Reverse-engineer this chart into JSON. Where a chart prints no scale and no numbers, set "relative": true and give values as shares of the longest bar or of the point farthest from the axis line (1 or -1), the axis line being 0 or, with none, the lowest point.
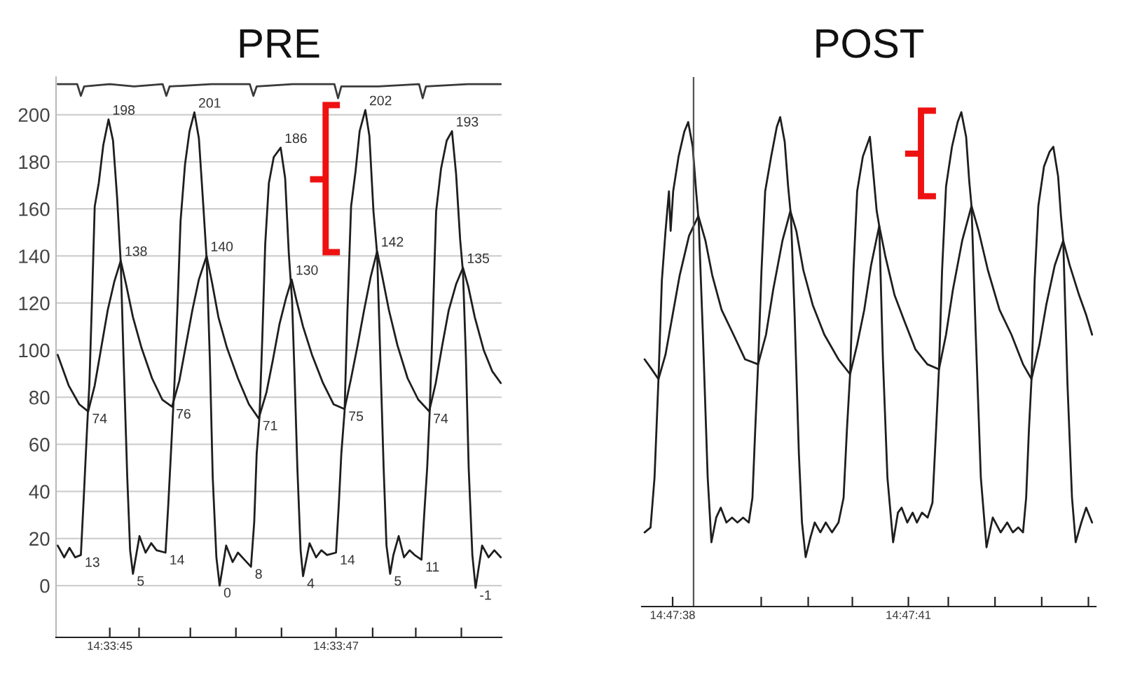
{
  "chart_data": [
    {
      "type": "line",
      "title": "PRE",
      "series": [
        {
          "color": "#1e1e1e",
          "x": [
            14.562372,
            14.562388,
            14.562401,
            14.562415,
            14.562429,
            14.562436,
            14.562444,
            14.56245,
            14.562457,
            14.562463,
            14.562473,
            14.562484,
            14.562497,
            14.562508,
            14.562518,
            14.562527,
            14.562534,
            14.562543,
            14.56255,
            14.562557,
            14.562573,
            14.562588,
            14.562602,
            14.562615,
            14.562637,
            14.562644,
            14.562652,
            14.562659,
            14.562667,
            14.562674,
            14.562685,
            14.562696,
            14.562708,
            14.562719,
            14.56273,
            14.562738,
            14.562746,
            14.562753,
            14.562762,
            14.56277,
            14.562786,
            14.562802,
            14.562815,
            14.562831,
            14.562847,
            14.562855,
            14.562861,
            14.562868,
            14.562875,
            14.562882,
            14.562891,
            14.562903,
            14.56292,
            14.562931,
            14.56294,
            14.562948,
            14.562954,
            14.562961,
            14.562969,
            14.562975,
            14.562991,
            14.563007,
            14.56302,
            14.563034,
            14.563056,
            14.563063,
            14.563069,
            14.563077,
            14.563084,
            14.563093,
            14.563104,
            14.563114,
            14.563128,
            14.563138,
            14.563148,
            14.563157,
            14.563165,
            14.563173,
            14.56318,
            14.563189,
            14.563197,
            14.56321,
            14.563223,
            14.563237,
            14.563249,
            14.563266,
            14.563273,
            14.56328,
            14.563286,
            14.563294,
            14.563302,
            14.563314,
            14.563328,
            14.563341,
            14.563351,
            14.563361,
            14.563368,
            14.563375,
            14.563382,
            14.563391,
            14.563399,
            14.563415,
            14.563431,
            14.563445,
            14.563461
          ],
          "values": [
            17,
            12,
            16,
            12,
            13,
            37,
            66,
            86,
            125,
            161,
            171,
            187,
            198,
            189,
            165,
            137,
            96,
            46,
            15,
            5,
            21,
            14,
            18,
            15,
            14,
            35,
            62,
            86,
            121,
            155,
            179,
            193,
            201,
            190,
            161,
            139,
            96,
            46,
            12,
            0,
            17,
            10,
            14,
            11,
            8,
            27,
            56,
            72,
            106,
            145,
            171,
            182,
            186,
            173,
            141,
            121,
            90,
            50,
            15,
            4,
            18,
            12,
            15,
            13,
            14,
            35,
            56,
            74,
            116,
            161,
            176,
            193,
            202,
            191,
            159,
            141,
            96,
            50,
            17,
            5,
            13,
            21,
            12,
            15,
            13,
            11,
            31,
            50,
            73,
            114,
            159,
            177,
            189,
            193,
            175,
            147,
            133,
            98,
            50,
            13,
            -1,
            17,
            12,
            15,
            12
          ],
          "value_labels": [
            null,
            null,
            null,
            null,
            "13",
            null,
            null,
            null,
            null,
            null,
            null,
            null,
            "198",
            null,
            null,
            null,
            null,
            null,
            null,
            "5",
            null,
            null,
            null,
            null,
            "14",
            null,
            null,
            null,
            null,
            null,
            null,
            null,
            "201",
            null,
            null,
            null,
            null,
            null,
            null,
            "0",
            null,
            null,
            null,
            null,
            "8",
            null,
            null,
            null,
            null,
            null,
            null,
            null,
            "186",
            null,
            null,
            null,
            null,
            null,
            null,
            "4",
            null,
            null,
            null,
            null,
            "14",
            null,
            null,
            null,
            null,
            null,
            null,
            null,
            "202",
            null,
            null,
            null,
            null,
            null,
            null,
            "5",
            null,
            null,
            null,
            null,
            null,
            "11",
            null,
            null,
            null,
            null,
            null,
            null,
            null,
            "193",
            null,
            null,
            null,
            null,
            null,
            null,
            "-1",
            null,
            null,
            null,
            null
          ]
        },
        {
          "color": "#1e1e1e",
          "x": [
            14.562372,
            14.562399,
            14.562425,
            14.562447,
            14.562463,
            14.562479,
            14.562495,
            14.562511,
            14.562527,
            14.56254,
            14.562557,
            14.562578,
            14.562604,
            14.562629,
            14.562653,
            14.562671,
            14.562687,
            14.562703,
            14.562719,
            14.562738,
            14.562751,
            14.562767,
            14.562788,
            14.562815,
            14.562842,
            14.562866,
            14.562885,
            14.562901,
            14.562917,
            14.562933,
            14.562947,
            14.562959,
            14.562975,
            14.562997,
            14.563024,
            14.56305,
            14.563077,
            14.563093,
            14.563109,
            14.563125,
            14.563141,
            14.563157,
            14.56317,
            14.563186,
            14.563207,
            14.563232,
            14.563258,
            14.563285,
            14.563301,
            14.563317,
            14.563333,
            14.563351,
            14.563368,
            14.563381,
            14.563397,
            14.563419,
            14.56344,
            14.563461
          ],
          "values": [
            98,
            85,
            77,
            74,
            85,
            101,
            117,
            129,
            138,
            128,
            114,
            101,
            88,
            79,
            76,
            87,
            102,
            117,
            130,
            140,
            129,
            114,
            101,
            88,
            77,
            71,
            82,
            96,
            111,
            122,
            130,
            121,
            110,
            98,
            86,
            77,
            75,
            88,
            102,
            117,
            131,
            142,
            131,
            117,
            102,
            88,
            79,
            74,
            86,
            102,
            117,
            128,
            135,
            127,
            114,
            100,
            91,
            86
          ],
          "value_labels": [
            null,
            null,
            null,
            "74",
            null,
            null,
            null,
            null,
            "138",
            null,
            null,
            null,
            null,
            null,
            "76",
            null,
            null,
            null,
            null,
            "140",
            null,
            null,
            null,
            null,
            null,
            "71",
            null,
            null,
            null,
            null,
            "130",
            null,
            null,
            null,
            null,
            null,
            "75",
            null,
            null,
            null,
            null,
            "142",
            null,
            null,
            null,
            null,
            null,
            "74",
            null,
            null,
            null,
            null,
            "135",
            null,
            null,
            null,
            null,
            null
          ]
        },
        {
          "color": "#3a3a3a",
          "x": [
            14.562372,
            14.56242,
            14.562429,
            14.562437,
            14.5625,
            14.56256,
            14.56263,
            14.562639,
            14.562647,
            14.56275,
            14.562844,
            14.562853,
            14.562861,
            14.56295,
            14.563052,
            14.563061,
            14.563069,
            14.56316,
            14.56326,
            14.563269,
            14.563277,
            14.56338,
            14.563461
          ],
          "values": [
            213,
            213,
            208,
            212,
            213,
            212,
            213,
            208,
            212,
            213,
            213,
            208,
            212,
            213,
            213,
            207,
            212,
            212,
            213,
            207,
            212,
            213,
            213
          ]
        }
      ],
      "xlim": [
        14.562368,
        14.563463
      ],
      "xticks": [
        {
          "value": 14.5625,
          "label": "14:33:45"
        },
        {
          "value": 14.562572,
          "label": null
        },
        {
          "value": 14.562698,
          "label": null
        },
        {
          "value": 14.56281,
          "label": null
        },
        {
          "value": 14.562922,
          "label": null
        },
        {
          "value": 14.563056,
          "label": "14:33:47"
        },
        {
          "value": 14.563146,
          "label": null
        },
        {
          "value": 14.563252,
          "label": null
        },
        {
          "value": 14.563364,
          "label": null
        }
      ],
      "ylim": [
        -22,
        216
      ],
      "yticks": [
        0,
        20,
        40,
        60,
        80,
        100,
        120,
        140,
        160,
        180,
        200
      ],
      "grid": "y"
    },
    {
      "type": "line",
      "title": "POST",
      "relative": true,
      "tick_labels": "x",
      "series": [
        {
          "color": "#1e1e1e",
          "x": [
            14.79379,
            14.793811,
            14.793825,
            14.793839,
            14.793851,
            14.793864,
            14.793876,
            14.793882,
            14.793891,
            14.79391,
            14.79393,
            14.793944,
            14.79396,
            14.793972,
            14.793981,
            14.793996,
            14.794013,
            14.794026,
            14.794043,
            14.794059,
            14.794079,
            14.794099,
            14.794118,
            14.794138,
            14.794158,
            14.794171,
            14.794181,
            14.794191,
            14.794203,
            14.794216,
            14.794237,
            14.794257,
            14.794269,
            14.794285,
            14.794297,
            14.794307,
            14.79432,
            14.794335,
            14.794346,
            14.794359,
            14.794376,
            14.794391,
            14.794411,
            14.79443,
            14.794452,
            14.794475,
            14.794493,
            14.794505,
            14.794516,
            14.794528,
            14.794541,
            14.794561,
            14.794586,
            14.794599,
            14.79461,
            14.794619,
            14.794632,
            14.794648,
            14.794668,
            14.794685,
            14.794698,
            14.794718,
            14.794737,
            14.794752,
            14.79477,
            14.79479,
            14.794807,
            14.79482,
            14.79483,
            14.794841,
            14.794855,
            14.794876,
            14.794896,
            14.794909,
            14.794926,
            14.794937,
            14.794945,
            14.79496,
            14.794978,
            14.794998,
            14.79502,
            14.795048,
            14.795071,
            14.795091,
            14.79511,
            14.795127,
            14.795138,
            14.795148,
            14.795157,
            14.795168,
            14.795181,
            14.795201,
            14.795221,
            14.795234,
            14.795251,
            14.795261,
            14.795269,
            14.795284,
            14.7953,
            14.795313,
            14.795333,
            14.79535,
            14.795371
          ],
          "values": [
            0.15,
            0.16,
            0.26,
            0.46,
            0.66,
            0.76,
            0.84,
            0.76,
            0.84,
            0.91,
            0.96,
            0.98,
            0.93,
            0.84,
            0.78,
            0.55,
            0.26,
            0.13,
            0.18,
            0.2,
            0.17,
            0.18,
            0.17,
            0.18,
            0.17,
            0.22,
            0.36,
            0.49,
            0.68,
            0.84,
            0.91,
            0.97,
            0.99,
            0.94,
            0.85,
            0.79,
            0.59,
            0.31,
            0.17,
            0.1,
            0.14,
            0.17,
            0.15,
            0.17,
            0.15,
            0.17,
            0.22,
            0.36,
            0.47,
            0.68,
            0.84,
            0.91,
            0.95,
            0.87,
            0.8,
            0.77,
            0.5,
            0.26,
            0.13,
            0.19,
            0.2,
            0.17,
            0.19,
            0.17,
            0.19,
            0.18,
            0.21,
            0.36,
            0.48,
            0.68,
            0.85,
            0.93,
            0.98,
            1.0,
            0.95,
            0.86,
            0.81,
            0.55,
            0.26,
            0.12,
            0.18,
            0.15,
            0.17,
            0.15,
            0.16,
            0.15,
            0.22,
            0.36,
            0.46,
            0.66,
            0.81,
            0.89,
            0.92,
            0.93,
            0.87,
            0.79,
            0.74,
            0.45,
            0.22,
            0.13,
            0.17,
            0.2,
            0.17
          ]
        },
        {
          "color": "#1e1e1e",
          "x": [
            14.79379,
            14.793815,
            14.793839,
            14.793864,
            14.793889,
            14.793914,
            14.793947,
            14.79398,
            14.794005,
            14.794029,
            14.794062,
            14.794104,
            14.794145,
            14.794191,
            14.794219,
            14.794244,
            14.794277,
            14.794305,
            14.794326,
            14.794351,
            14.794384,
            14.794425,
            14.794475,
            14.794516,
            14.794541,
            14.794566,
            14.79459,
            14.794619,
            14.79464,
            14.794673,
            14.794706,
            14.794747,
            14.794789,
            14.79483,
            14.794855,
            14.794879,
            14.794912,
            14.794945,
            14.79497,
            14.795003,
            14.795044,
            14.795086,
            14.795127,
            14.795157,
            14.795185,
            14.795209,
            14.795239,
            14.795269,
            14.795292,
            14.795325,
            14.79535,
            14.795371
          ],
          "values": [
            0.5,
            0.48,
            0.46,
            0.51,
            0.59,
            0.67,
            0.75,
            0.79,
            0.74,
            0.67,
            0.6,
            0.55,
            0.5,
            0.49,
            0.55,
            0.64,
            0.74,
            0.8,
            0.76,
            0.68,
            0.61,
            0.55,
            0.5,
            0.47,
            0.53,
            0.6,
            0.69,
            0.77,
            0.71,
            0.63,
            0.58,
            0.52,
            0.49,
            0.48,
            0.55,
            0.64,
            0.74,
            0.81,
            0.76,
            0.68,
            0.6,
            0.55,
            0.49,
            0.46,
            0.53,
            0.61,
            0.69,
            0.74,
            0.69,
            0.63,
            0.59,
            0.55
          ]
        }
      ],
      "xlim": [
        14.79378,
        14.795384
      ],
      "xticks": [
        {
          "value": 14.793889,
          "label": "14:47:38"
        },
        {
          "value": 14.794202,
          "label": null
        },
        {
          "value": 14.794368,
          "label": null
        },
        {
          "value": 14.794524,
          "label": null
        },
        {
          "value": 14.794722,
          "label": "14:47:41"
        },
        {
          "value": 14.794863,
          "label": null
        },
        {
          "value": 14.795028,
          "label": null
        },
        {
          "value": 14.795193,
          "label": null
        },
        {
          "value": 14.795358,
          "label": null
        }
      ],
      "ref_lines": [
        {
          "axis": "x",
          "value": 14.793963,
          "color": "#555555"
        }
      ]
    }
  ]
}
